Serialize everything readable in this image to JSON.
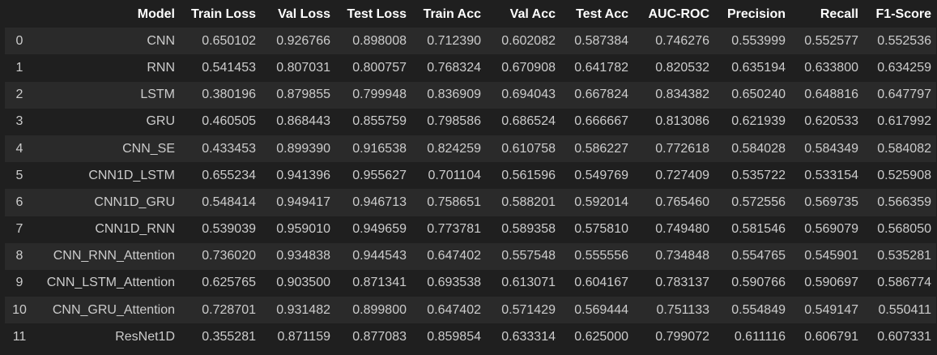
{
  "table": {
    "columns": [
      "",
      "Model",
      "Train Loss",
      "Val Loss",
      "Test Loss",
      "Train Acc",
      "Val Acc",
      "Test Acc",
      "AUC-ROC",
      "Precision",
      "Recall",
      "F1-Score"
    ],
    "rows": [
      [
        "0",
        "CNN",
        "0.650102",
        "0.926766",
        "0.898008",
        "0.712390",
        "0.602082",
        "0.587384",
        "0.746276",
        "0.553999",
        "0.552577",
        "0.552536"
      ],
      [
        "1",
        "RNN",
        "0.541453",
        "0.807031",
        "0.800757",
        "0.768324",
        "0.670908",
        "0.641782",
        "0.820532",
        "0.635194",
        "0.633800",
        "0.634259"
      ],
      [
        "2",
        "LSTM",
        "0.380196",
        "0.879855",
        "0.799948",
        "0.836909",
        "0.694043",
        "0.667824",
        "0.834382",
        "0.650240",
        "0.648816",
        "0.647797"
      ],
      [
        "3",
        "GRU",
        "0.460505",
        "0.868443",
        "0.855759",
        "0.798586",
        "0.686524",
        "0.666667",
        "0.813086",
        "0.621939",
        "0.620533",
        "0.617992"
      ],
      [
        "4",
        "CNN_SE",
        "0.433453",
        "0.899390",
        "0.916538",
        "0.824259",
        "0.610758",
        "0.586227",
        "0.772618",
        "0.584028",
        "0.584349",
        "0.584082"
      ],
      [
        "5",
        "CNN1D_LSTM",
        "0.655234",
        "0.941396",
        "0.955627",
        "0.701104",
        "0.561596",
        "0.549769",
        "0.727409",
        "0.535722",
        "0.533154",
        "0.525908"
      ],
      [
        "6",
        "CNN1D_GRU",
        "0.548414",
        "0.949417",
        "0.946713",
        "0.758651",
        "0.588201",
        "0.592014",
        "0.765460",
        "0.572556",
        "0.569735",
        "0.566359"
      ],
      [
        "7",
        "CNN1D_RNN",
        "0.539039",
        "0.959010",
        "0.949659",
        "0.773781",
        "0.589358",
        "0.575810",
        "0.749480",
        "0.581546",
        "0.569079",
        "0.568050"
      ],
      [
        "8",
        "CNN_RNN_Attention",
        "0.736020",
        "0.934838",
        "0.944543",
        "0.647402",
        "0.557548",
        "0.555556",
        "0.734848",
        "0.554765",
        "0.545901",
        "0.535281"
      ],
      [
        "9",
        "CNN_LSTM_Attention",
        "0.625765",
        "0.903500",
        "0.871341",
        "0.693538",
        "0.613071",
        "0.604167",
        "0.783137",
        "0.590766",
        "0.590697",
        "0.586774"
      ],
      [
        "10",
        "CNN_GRU_Attention",
        "0.728701",
        "0.931482",
        "0.899800",
        "0.647402",
        "0.571429",
        "0.569444",
        "0.751133",
        "0.554849",
        "0.549147",
        "0.550411"
      ],
      [
        "11",
        "ResNet1D",
        "0.355281",
        "0.871159",
        "0.877083",
        "0.859854",
        "0.633314",
        "0.625000",
        "0.799072",
        "0.611116",
        "0.606791",
        "0.607331"
      ]
    ]
  },
  "colors": {
    "background": "#1f1f1f",
    "row_alt": "#2a2a2a",
    "text": "#cccccc",
    "header_text": "#ffffff"
  }
}
